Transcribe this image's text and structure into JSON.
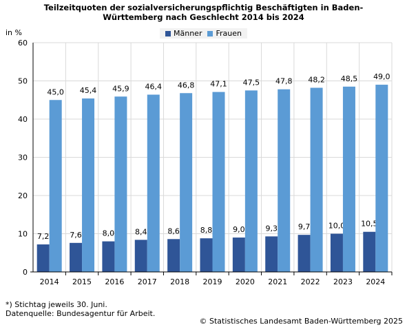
{
  "title_line1": "Teilzeitquoten der sozialversicherungspflichtig Beschäftigten in Baden-",
  "title_line2": "Württemberg nach Geschlecht 2014 bis 2024",
  "footnote1": "*) Stichtag jeweils 30. Juni.",
  "footnote2": "Datenquelle: Bundesagentur für Arbeit.",
  "copyright": "© Statistisches Landesamt Baden-Württemberg 2025",
  "colors": {
    "maenner": "#2f5597",
    "frauen": "#5b9bd5",
    "grid": "#d9d9d9",
    "axis": "#000000"
  },
  "chart_data": {
    "type": "bar",
    "title": "Teilzeitquoten der sozialversicherungspflichtig Beschäftigten in Baden-Württemberg nach Geschlecht 2014 bis 2024",
    "ylabel": "in %",
    "xlabel": "",
    "ylim": [
      0,
      60
    ],
    "yticks": [
      0,
      10,
      20,
      30,
      40,
      50,
      60
    ],
    "legend_position": "top-center",
    "grid": true,
    "categories": [
      "2014",
      "2015",
      "2016",
      "2017",
      "2018",
      "2019",
      "2020",
      "2021",
      "2022",
      "2023",
      "2024"
    ],
    "series": [
      {
        "name": "Männer",
        "values": [
          7.2,
          7.6,
          8.0,
          8.4,
          8.6,
          8.8,
          9.0,
          9.3,
          9.7,
          10.0,
          10.5
        ],
        "labels": [
          "7,2",
          "7,6",
          "8,0",
          "8,4",
          "8,6",
          "8,8",
          "9,0",
          "9,3",
          "9,7",
          "10,0",
          "10,5"
        ]
      },
      {
        "name": "Frauen",
        "values": [
          45.0,
          45.4,
          45.9,
          46.4,
          46.8,
          47.1,
          47.5,
          47.8,
          48.2,
          48.5,
          49.0
        ],
        "labels": [
          "45,0",
          "45,4",
          "45,9",
          "46,4",
          "46,8",
          "47,1",
          "47,5",
          "47,8",
          "48,2",
          "48,5",
          "49,0"
        ]
      }
    ]
  }
}
